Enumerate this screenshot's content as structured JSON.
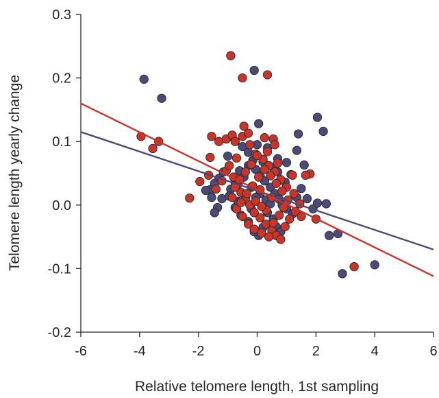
{
  "chart_data": {
    "type": "scatter",
    "title": "",
    "xlabel": "Relative telomere length, 1st sampling",
    "ylabel": "Telomere length yearly change",
    "xlim": [
      -6,
      6
    ],
    "ylim": [
      -0.2,
      0.3
    ],
    "xticks": [
      "-6",
      "-4",
      "-2",
      "0",
      "2",
      "4",
      "6"
    ],
    "yticks": [
      "-0.2",
      "-0.1",
      "0.0",
      "0.1",
      "0.2",
      "0.3"
    ],
    "xtick_values": [
      -6,
      -4,
      -2,
      0,
      2,
      4,
      6
    ],
    "ytick_values": [
      -0.2,
      -0.1,
      0.0,
      0.1,
      0.2,
      0.3
    ],
    "grid": false,
    "legend": "none",
    "series": [
      {
        "color": "#4b4a78",
        "points": [
          [
            -3.85,
            0.198
          ],
          [
            -3.25,
            0.168
          ],
          [
            -0.1,
            0.212
          ],
          [
            0.05,
            0.128
          ],
          [
            2.05,
            0.138
          ],
          [
            2.25,
            0.116
          ],
          [
            1.4,
            0.112
          ],
          [
            1.35,
            0.086
          ],
          [
            1.6,
            0.063
          ],
          [
            1.0,
            0.067
          ],
          [
            0.7,
            0.073
          ],
          [
            -0.5,
            0.092
          ],
          [
            -0.3,
            0.083
          ],
          [
            0.0,
            0.095
          ],
          [
            0.35,
            0.09
          ],
          [
            -0.85,
            0.108
          ],
          [
            -1.0,
            0.077
          ],
          [
            -1.15,
            0.052
          ],
          [
            -1.3,
            0.042
          ],
          [
            -1.45,
            0.034
          ],
          [
            -1.6,
            0.024
          ],
          [
            -1.75,
            0.023
          ],
          [
            -1.55,
            0.012
          ],
          [
            -1.35,
            -0.004
          ],
          [
            -1.45,
            -0.012
          ],
          [
            -1.2,
            0.01
          ],
          [
            -0.9,
            0.025
          ],
          [
            -0.75,
            0.036
          ],
          [
            -0.6,
            0.054
          ],
          [
            -0.45,
            0.044
          ],
          [
            -0.3,
            0.062
          ],
          [
            -0.15,
            0.07
          ],
          [
            -0.05,
            0.056
          ],
          [
            0.1,
            0.046
          ],
          [
            0.25,
            0.038
          ],
          [
            0.45,
            0.028
          ],
          [
            0.6,
            0.018
          ],
          [
            0.75,
            0.009
          ],
          [
            0.85,
            0.0
          ],
          [
            1.0,
            -0.006
          ],
          [
            1.2,
            -0.014
          ],
          [
            1.35,
            0.012
          ],
          [
            1.5,
            0.026
          ],
          [
            1.7,
            0.01
          ],
          [
            1.9,
            -0.006
          ],
          [
            2.05,
            0.003
          ],
          [
            2.35,
            0.002
          ],
          [
            2.45,
            -0.048
          ],
          [
            2.75,
            -0.045
          ],
          [
            2.9,
            -0.108
          ],
          [
            4.0,
            -0.094
          ],
          [
            0.2,
            -0.035
          ],
          [
            0.05,
            -0.048
          ],
          [
            -0.1,
            -0.042
          ],
          [
            -0.3,
            -0.026
          ],
          [
            -0.55,
            -0.016
          ],
          [
            -0.75,
            -0.004
          ],
          [
            -0.95,
            0.014
          ],
          [
            0.35,
            -0.012
          ],
          [
            0.55,
            -0.022
          ],
          [
            0.65,
            -0.034
          ],
          [
            0.8,
            -0.042
          ],
          [
            0.3,
            0.008
          ],
          [
            0.1,
            0.018
          ],
          [
            -0.2,
            0.028
          ],
          [
            -0.4,
            0.012
          ],
          [
            -0.65,
            0.006
          ],
          [
            0.95,
            0.036
          ],
          [
            1.15,
            0.048
          ],
          [
            0.55,
            0.058
          ],
          [
            0.2,
            0.068
          ],
          [
            -0.05,
            0.012
          ],
          [
            -0.2,
            -0.006
          ],
          [
            0.45,
            0.002
          ],
          [
            0.7,
            0.052
          ]
        ]
      },
      {
        "color": "#c9342b",
        "points": [
          [
            -0.9,
            0.235
          ],
          [
            0.35,
            0.205
          ],
          [
            -0.5,
            0.2
          ],
          [
            -3.95,
            0.108
          ],
          [
            -3.35,
            0.1
          ],
          [
            -3.55,
            0.089
          ],
          [
            -2.3,
            0.011
          ],
          [
            -1.95,
            0.037
          ],
          [
            -1.65,
            0.047
          ],
          [
            -1.6,
            0.075
          ],
          [
            -1.55,
            0.108
          ],
          [
            -1.3,
            0.1
          ],
          [
            -1.05,
            0.104
          ],
          [
            -0.85,
            0.11
          ],
          [
            -0.75,
            0.1
          ],
          [
            -0.45,
            0.124
          ],
          [
            -0.5,
            0.108
          ],
          [
            -0.3,
            0.113
          ],
          [
            -0.25,
            0.095
          ],
          [
            -0.05,
            0.08
          ],
          [
            0.25,
            0.106
          ],
          [
            0.55,
            0.104
          ],
          [
            0.6,
            0.095
          ],
          [
            1.8,
            0.049
          ],
          [
            1.65,
            0.047
          ],
          [
            1.2,
            0.047
          ],
          [
            3.3,
            -0.097
          ],
          [
            -1.4,
            0.025
          ],
          [
            -1.2,
            0.038
          ],
          [
            -1.05,
            0.054
          ],
          [
            -0.95,
            0.062
          ],
          [
            -0.8,
            0.044
          ],
          [
            -0.65,
            0.033
          ],
          [
            -0.55,
            0.02
          ],
          [
            -0.4,
            0.008
          ],
          [
            -0.25,
            0.0
          ],
          [
            -0.1,
            -0.012
          ],
          [
            0.1,
            -0.02
          ],
          [
            0.3,
            -0.03
          ],
          [
            0.5,
            -0.04
          ],
          [
            0.65,
            -0.048
          ],
          [
            0.8,
            -0.054
          ],
          [
            0.95,
            -0.034
          ],
          [
            1.1,
            -0.022
          ],
          [
            1.3,
            -0.01
          ],
          [
            1.45,
            0.002
          ],
          [
            1.25,
            0.018
          ],
          [
            1.0,
            0.028
          ],
          [
            0.8,
            0.04
          ],
          [
            0.6,
            0.052
          ],
          [
            0.4,
            0.062
          ],
          [
            0.2,
            0.072
          ],
          [
            0.0,
            0.078
          ],
          [
            -0.2,
            0.064
          ],
          [
            -0.4,
            0.052
          ],
          [
            -0.6,
            0.04
          ],
          [
            -0.75,
            0.028
          ],
          [
            -0.85,
            0.012
          ],
          [
            -0.7,
            -0.006
          ],
          [
            -0.5,
            -0.018
          ],
          [
            -0.3,
            -0.03
          ],
          [
            -0.1,
            -0.038
          ],
          [
            0.15,
            -0.044
          ],
          [
            0.4,
            -0.05
          ],
          [
            0.55,
            -0.028
          ],
          [
            0.75,
            -0.016
          ],
          [
            0.9,
            -0.004
          ],
          [
            1.05,
            0.008
          ],
          [
            0.85,
            0.022
          ],
          [
            0.65,
            0.034
          ],
          [
            0.45,
            0.046
          ],
          [
            0.25,
            0.056
          ],
          [
            0.05,
            0.044
          ],
          [
            -0.15,
            0.03
          ],
          [
            -0.35,
            0.018
          ],
          [
            -0.55,
            0.004
          ],
          [
            0.3,
            -0.008
          ],
          [
            0.5,
            0.012
          ],
          [
            0.1,
            0.024
          ],
          [
            -0.05,
            0.006
          ],
          [
            0.7,
            0.066
          ],
          [
            0.35,
            0.084
          ],
          [
            -0.7,
            0.074
          ],
          [
            1.5,
            -0.018
          ],
          [
            2.0,
            -0.022
          ],
          [
            0.15,
            -0.002
          ]
        ]
      }
    ],
    "fit_lines": [
      {
        "color": "#4b4a78",
        "x": [
          -6,
          6
        ],
        "y": [
          0.115,
          -0.07
        ]
      },
      {
        "color": "#c9342b",
        "x": [
          -6,
          6
        ],
        "y": [
          0.16,
          -0.112
        ]
      }
    ]
  }
}
